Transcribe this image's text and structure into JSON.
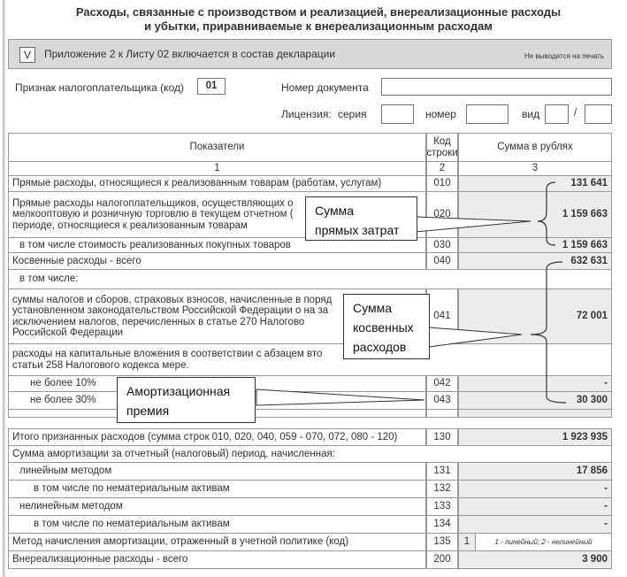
{
  "title": [
    "Расходы, связанные с производством и реализацией, внереализационные расходы",
    "и убытки, приравниваемые к внереализационным расходам"
  ],
  "banner": {
    "checkbox": "V",
    "text": "Приложение 2 к Листу 02 включается в состав декларации",
    "note": "Не выводится на печать"
  },
  "fields": {
    "taxpayer_label": "Признак налогоплательщика (код)",
    "taxpayer_value": "01",
    "docnum_label": "Номер документа",
    "license_label": "Лицензия:",
    "series_label": "серия",
    "number_label": "номер",
    "kind_label": "вид",
    "slash": "/"
  },
  "table": {
    "headers": [
      "Показатели",
      "Код строки",
      "Сумма в рублях"
    ],
    "colnums": [
      "1",
      "2",
      "3"
    ],
    "rows": [
      {
        "label": "Прямые расходы, относящиеся к реализованным товарам (работам, услугам)",
        "code": "010",
        "sum": "131 641"
      },
      {
        "label": "Прямые расходы налогоплательщиков, осуществляющих о мелкооптовую и розничную торговлю в текущем отчетном ( периоде, относящиеся к реализованным товарам",
        "code": "020",
        "sum": "1 159 663"
      },
      {
        "label": "в том числе стоимость реализованных покупных товаров",
        "code": "030",
        "sum": "1 159 663"
      },
      {
        "label": "Косвенные расходы - всего",
        "code": "040",
        "sum": "632 631"
      },
      {
        "label": "в том числе:",
        "code": "",
        "sum": ""
      },
      {
        "label": "суммы налогов и сборов, страховых взносов, начисленные в поряд установленном законодательством Российской Федерации о на за исключением налогов, перечисленных в статье 270 Налогово Российской Федерации",
        "code": "041",
        "sum": "72 001"
      },
      {
        "label": "расходы на капитальные вложения в соответствии с абзацем вто статьи 258 Налогового кодекса мере.",
        "code": "",
        "sum": ""
      },
      {
        "label": "не более 10%",
        "code": "042",
        "sum": "-"
      },
      {
        "label": "не более 30%",
        "code": "043",
        "sum": "30 300"
      }
    ]
  },
  "table2": {
    "rows": [
      {
        "label": "Итого признанных расходов (сумма строк 010, 020, 040, 059 - 070, 072, 080 - 120)",
        "code": "130",
        "sum": "1 923 935"
      },
      {
        "label": "Сумма амортизации за отчетный (налоговый) период, начисленная:",
        "code": "",
        "sum": ""
      },
      {
        "label": "линейным методом",
        "code": "131",
        "sum": "17 856"
      },
      {
        "label": "в том числе по нематериальным активам",
        "code": "132",
        "sum": "-"
      },
      {
        "label": "нелинейным методом",
        "code": "133",
        "sum": "-"
      },
      {
        "label": "в том числе по нематериальным активам",
        "code": "134",
        "sum": "-"
      },
      {
        "label": "Метод начисления амортизации, отраженный в учетной политике (код)",
        "code": "135",
        "value": "1",
        "hint": "1 - линейный; 2 - нелинейный"
      },
      {
        "label": "Внереализационные расходы - всего",
        "code": "200",
        "sum": "3 900"
      }
    ]
  },
  "callouts": {
    "direct": [
      "Сумма",
      "прямых затрат"
    ],
    "indirect": [
      "Сумма",
      "косвенных",
      "расходов"
    ],
    "bonus": [
      "Амортизационная",
      "премия"
    ]
  }
}
